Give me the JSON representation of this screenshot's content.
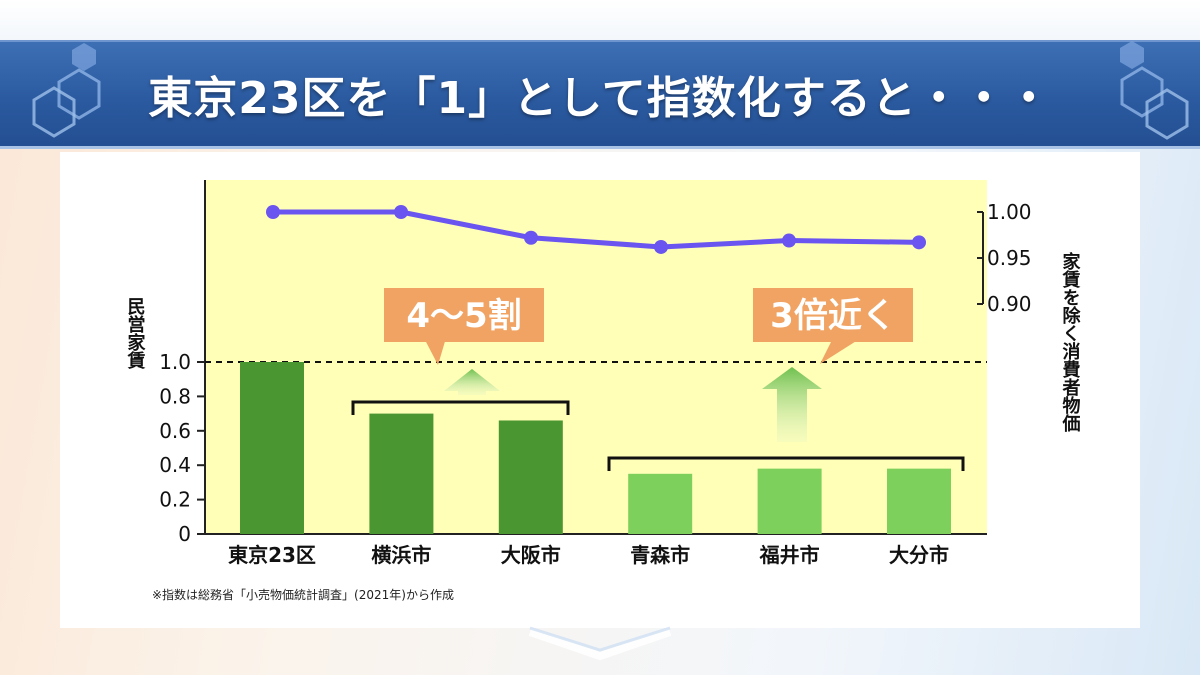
{
  "header": {
    "title": "東京23区を「1」として指数化すると・・・"
  },
  "footnote": "※指数は総務省「小売物価統計調査」(2021年)から作成",
  "colors": {
    "header_bg": "#2b5aa0",
    "plot_bg": "#ffffb8",
    "bar_dark": "#4a9630",
    "bar_light": "#7ed05c",
    "line": "#6a55f0",
    "callout": "#f0a362"
  },
  "chart_data": {
    "type": "bar",
    "categories": [
      "東京23区",
      "横浜市",
      "大阪市",
      "青森市",
      "福井市",
      "大分市"
    ],
    "series": [
      {
        "name": "",
        "axis": "left",
        "values": [
          1.0,
          0.7,
          0.66,
          0.35,
          0.38,
          0.38
        ]
      },
      {
        "name": "",
        "axis": "right",
        "type": "line",
        "values": [
          1.0,
          1.0,
          0.972,
          0.962,
          0.969,
          0.967
        ]
      }
    ],
    "ylabel_left": "民営家賃",
    "ylabel_right": "家賃を除く消費者物価",
    "yticks_left": [
      "0",
      "0.2",
      "0.4",
      "0.6",
      "0.8",
      "1.0"
    ],
    "yticks_right": [
      "0.90",
      "0.95",
      "1.00"
    ],
    "ylim_left": [
      0,
      1.0
    ],
    "ylim_right": [
      0.9,
      1.0
    ],
    "reference_line": 1.0,
    "annotations": [
      {
        "text": "4〜5割",
        "group": [
          1,
          2
        ]
      },
      {
        "text": "3倍近く",
        "group": [
          3,
          5
        ]
      }
    ]
  }
}
